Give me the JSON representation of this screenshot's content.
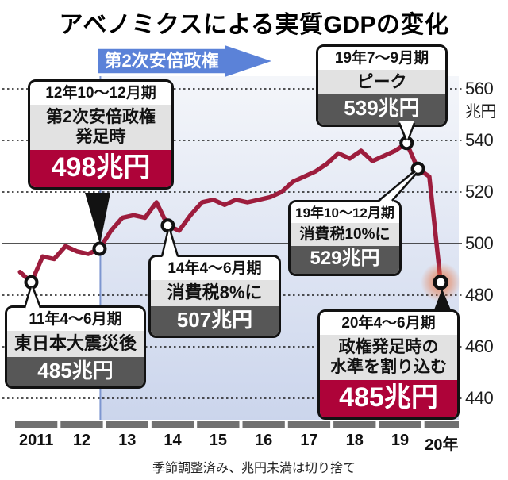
{
  "title": "アベノミクスによる実質GDPの変化",
  "era_banner": "第2次安倍政権",
  "footer_note": "季節調整済み、兆円未満は切り捨て",
  "y_axis": {
    "unit": "兆円",
    "ticks": [
      560,
      540,
      520,
      500,
      480,
      460,
      440
    ]
  },
  "x_axis": {
    "labels": [
      "2011",
      "12",
      "13",
      "14",
      "15",
      "16",
      "17",
      "18",
      "19",
      "20年"
    ]
  },
  "callouts": [
    {
      "period": "12年10〜12月期",
      "label": "第2次安倍政権\n発足時",
      "value": "498兆円",
      "style": "accent"
    },
    {
      "period": "19年7〜9月期",
      "label": "ピーク",
      "value": "539兆円",
      "style": "dark"
    },
    {
      "period": "11年4〜6月期",
      "label": "東日本大震災後",
      "value": "485兆円",
      "style": "dark"
    },
    {
      "period": "14年4〜6月期",
      "label": "消費税8%に",
      "value": "507兆円",
      "style": "dark"
    },
    {
      "period": "19年10〜12月期",
      "label": "消費税10%に",
      "value": "529兆円",
      "style": "dark"
    },
    {
      "period": "20年4〜6月期",
      "label": "政権発足時の\n水準を割り込む",
      "value": "485兆円",
      "style": "accent"
    }
  ],
  "chart_data": {
    "type": "line",
    "title": "アベノミクスによる実質GDPの変化",
    "ylabel": "兆円",
    "ylim": [
      435,
      565
    ],
    "y_ticks": [
      560,
      540,
      520,
      500,
      480,
      460,
      440
    ],
    "solid_gridline_value": 500,
    "x_start": "2011Q1",
    "x_end": "2020Q2",
    "frequency": "quarterly",
    "x_year_labels": [
      "2011",
      "12",
      "13",
      "14",
      "15",
      "16",
      "17",
      "18",
      "19",
      "20年"
    ],
    "values": [
      489,
      485,
      495,
      494,
      499,
      497,
      496,
      498,
      505,
      510,
      511,
      510,
      516,
      507,
      505,
      511,
      516,
      517,
      515,
      517,
      516,
      517,
      518,
      520,
      524,
      526,
      528,
      531,
      535,
      533,
      536,
      532,
      534,
      536,
      539,
      529,
      526,
      485
    ],
    "shaded_region": {
      "from": "2012Q4",
      "to": "2020Q2",
      "label": "第2次安倍政権"
    },
    "markers": [
      {
        "index": 1,
        "x": "2011Q2",
        "value": 485,
        "note": "東日本大震災後",
        "highlight": false
      },
      {
        "index": 7,
        "x": "2012Q4",
        "value": 498,
        "note": "第2次安倍政権発足時",
        "highlight": false
      },
      {
        "index": 13,
        "x": "2014Q2",
        "value": 507,
        "note": "消費税8%に",
        "highlight": false
      },
      {
        "index": 34,
        "x": "2019Q3",
        "value": 539,
        "note": "ピーク",
        "highlight": false
      },
      {
        "index": 35,
        "x": "2019Q4",
        "value": 529,
        "note": "消費税10%に",
        "highlight": false
      },
      {
        "index": 37,
        "x": "2020Q2",
        "value": 485,
        "note": "政権発足時の水準を割り込む",
        "highlight": true
      }
    ]
  },
  "colors": {
    "line": "#9d1d3d",
    "accent_red": "#ae0339",
    "dark_band": "#575757",
    "light_band": "#e2e2e2",
    "arrow_blue": "#5b82d8",
    "region_top": "#f4f6fa",
    "region_bottom": "#cbd5ec",
    "region_edge": "#7d96d0",
    "axis_bar": "#707070",
    "grid": "#1a1a1a",
    "highlight_glow": "#e87848"
  }
}
